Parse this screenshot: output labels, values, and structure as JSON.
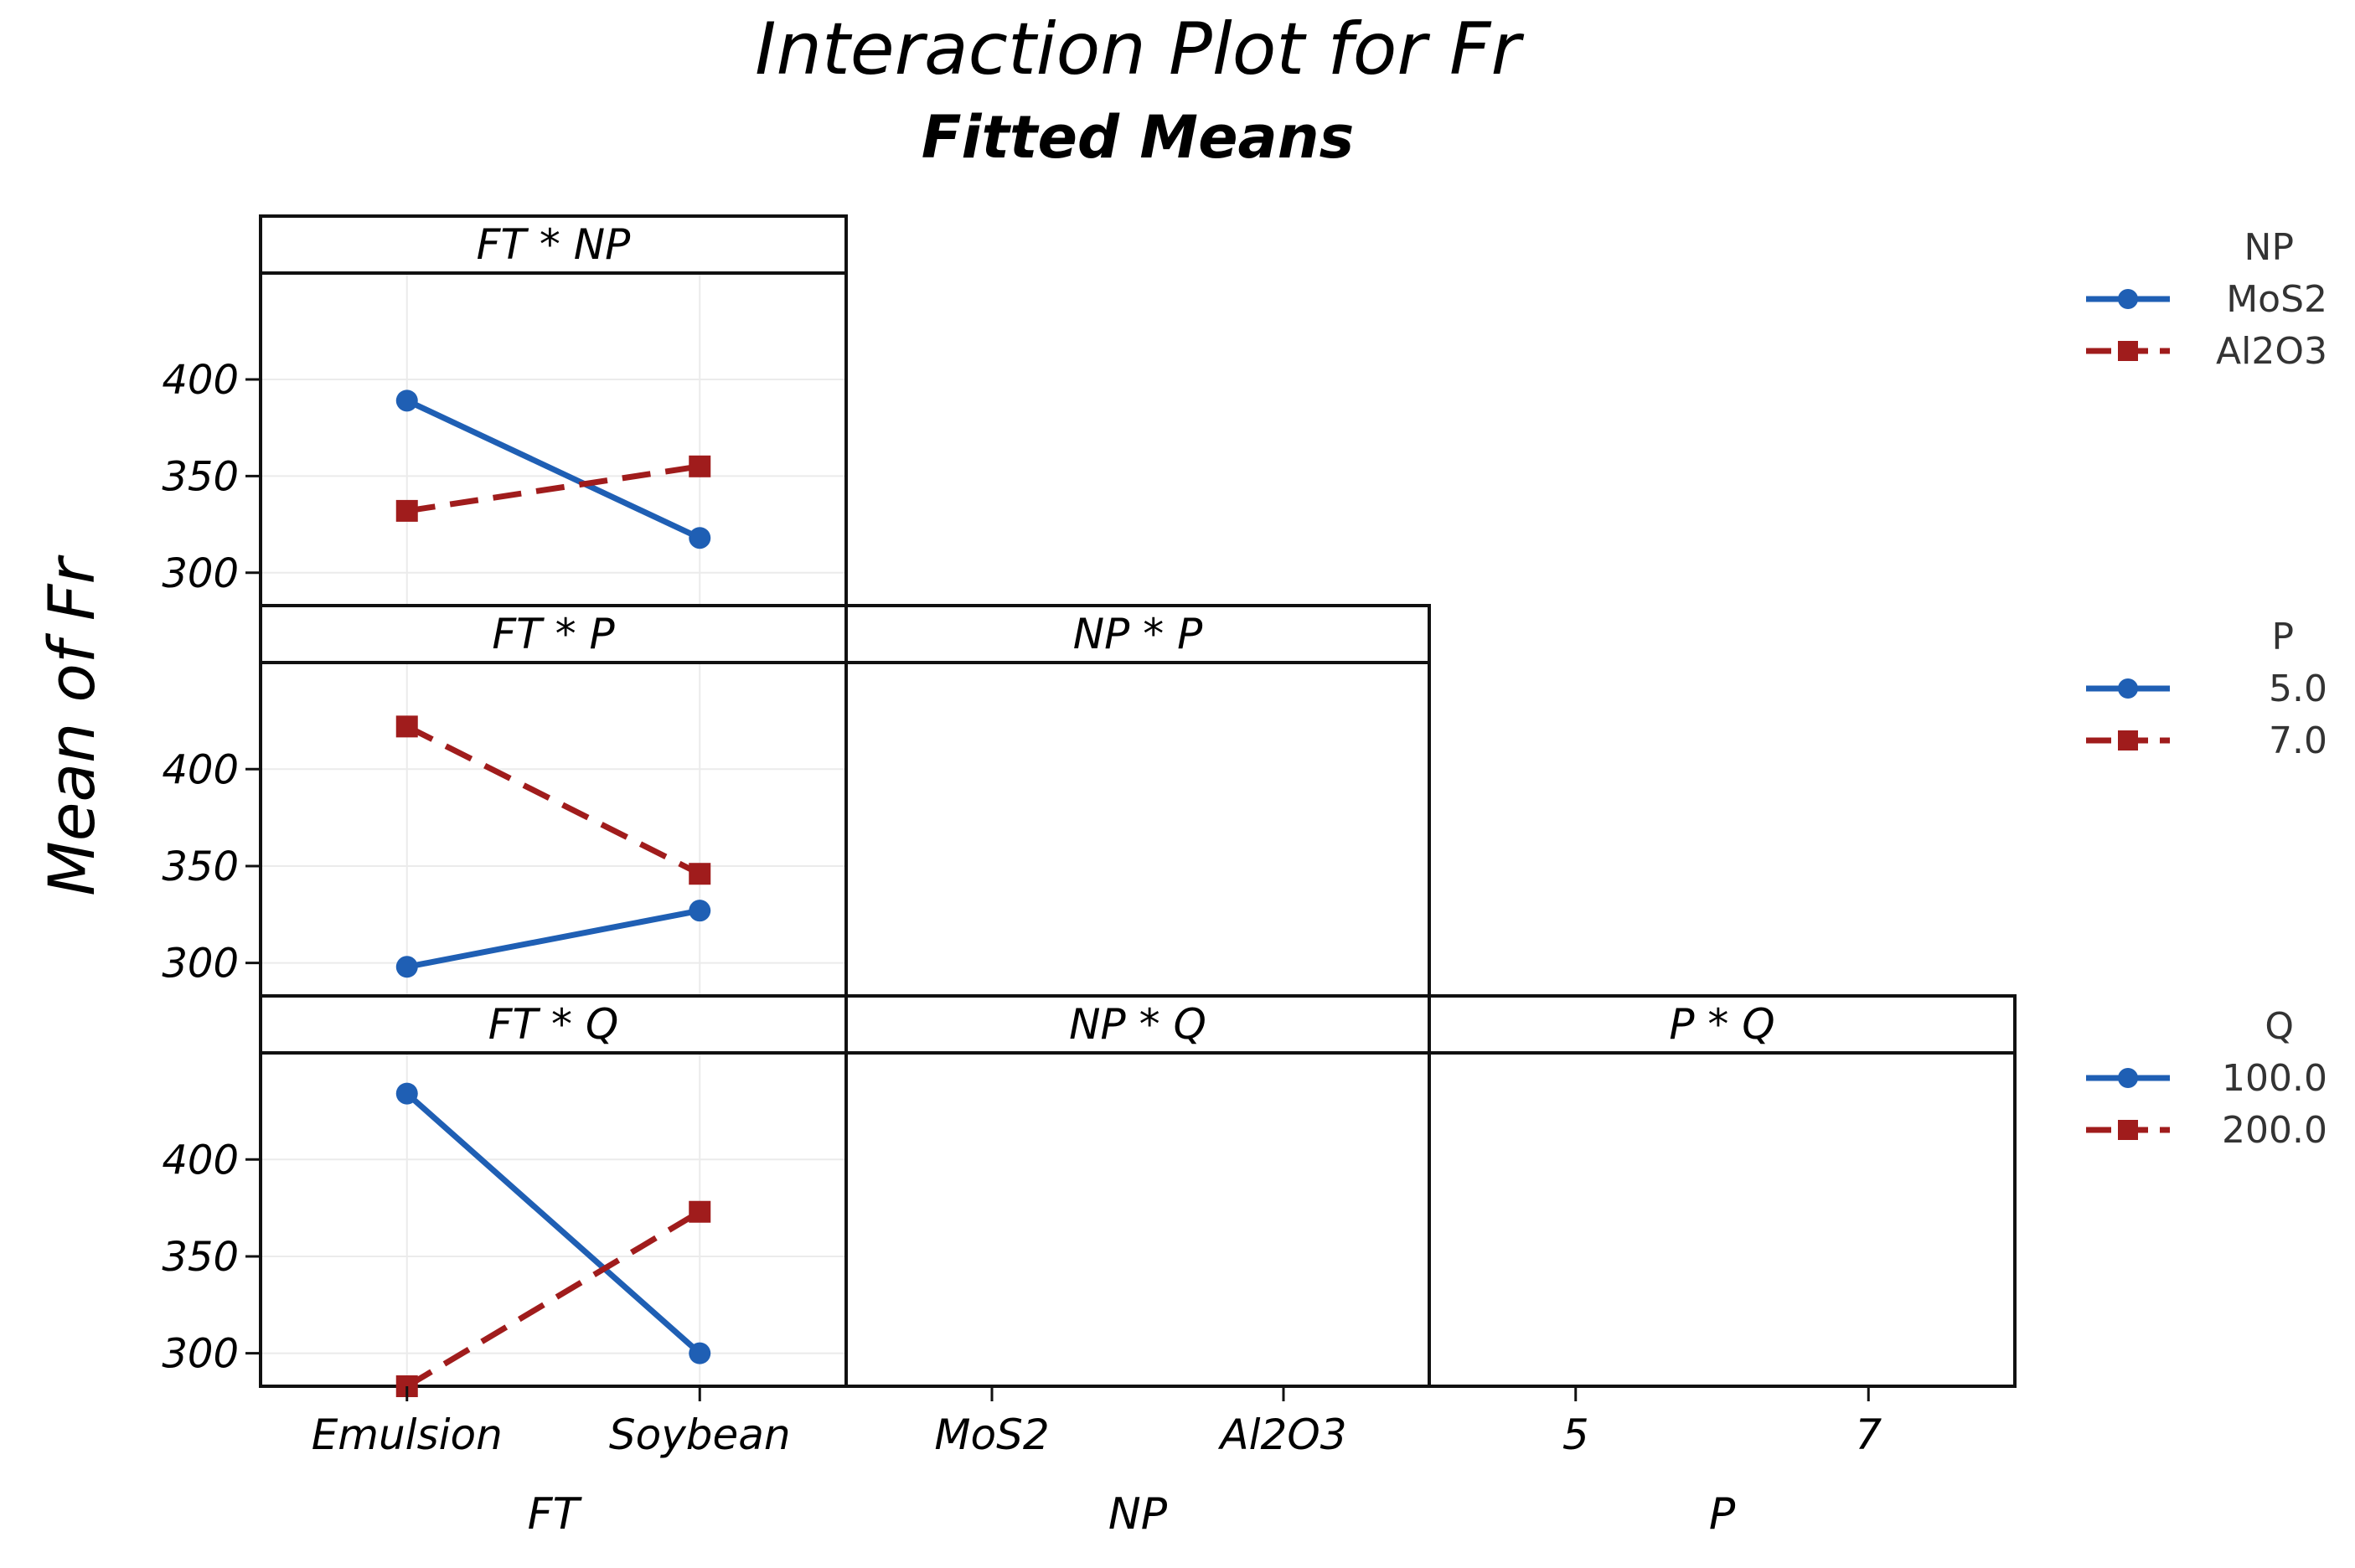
{
  "chart_data": {
    "type": "line",
    "title": "Interaction Plot for Fr",
    "subtitle": "Fitted Means",
    "ylabel": "Mean of Fr",
    "ylim": [
      283,
      455
    ],
    "yticks": [
      300,
      350,
      400
    ],
    "factors": [
      {
        "name": "FT",
        "levels": [
          "Emulsion",
          "Soybean"
        ]
      },
      {
        "name": "NP",
        "levels": [
          "MoS2",
          "Al2O3"
        ]
      },
      {
        "name": "P",
        "levels": [
          "5",
          "7"
        ]
      }
    ],
    "panels": [
      {
        "title": "FT * NP",
        "x_factor": "FT",
        "trace_factor": "NP",
        "series": [
          {
            "name": "MoS2",
            "style": "solid-circle",
            "values": [
              389,
              318
            ]
          },
          {
            "name": "Al2O3",
            "style": "dashed-square",
            "values": [
              332,
              355
            ]
          }
        ]
      },
      {
        "title": "FT * P",
        "x_factor": "FT",
        "trace_factor": "P",
        "series": [
          {
            "name": "5.0",
            "style": "solid-circle",
            "values": [
              298,
              327
            ]
          },
          {
            "name": "7.0",
            "style": "dashed-square",
            "values": [
              422,
              346
            ]
          }
        ]
      },
      {
        "title": "NP * P",
        "x_factor": "NP",
        "trace_factor": "P",
        "series": []
      },
      {
        "title": "FT * Q",
        "x_factor": "FT",
        "trace_factor": "Q",
        "series": [
          {
            "name": "100.0",
            "style": "solid-circle",
            "values": [
              434,
              300
            ]
          },
          {
            "name": "200.0",
            "style": "dashed-square",
            "values": [
              283,
              373
            ]
          }
        ]
      },
      {
        "title": "NP * Q",
        "x_factor": "NP",
        "trace_factor": "Q",
        "series": []
      },
      {
        "title": "P * Q",
        "x_factor": "P",
        "trace_factor": "Q",
        "series": []
      }
    ],
    "legends": [
      {
        "title": "NP",
        "items": [
          "MoS2",
          "Al2O3"
        ]
      },
      {
        "title": "P",
        "items": [
          "5.0",
          "7.0"
        ]
      },
      {
        "title": "Q",
        "items": [
          "100.0",
          "200.0"
        ]
      }
    ]
  },
  "colors": {
    "series1": "#1f5fb4",
    "series2": "#a01c1c",
    "frame": "#111111",
    "grid": "#ebebeb"
  }
}
